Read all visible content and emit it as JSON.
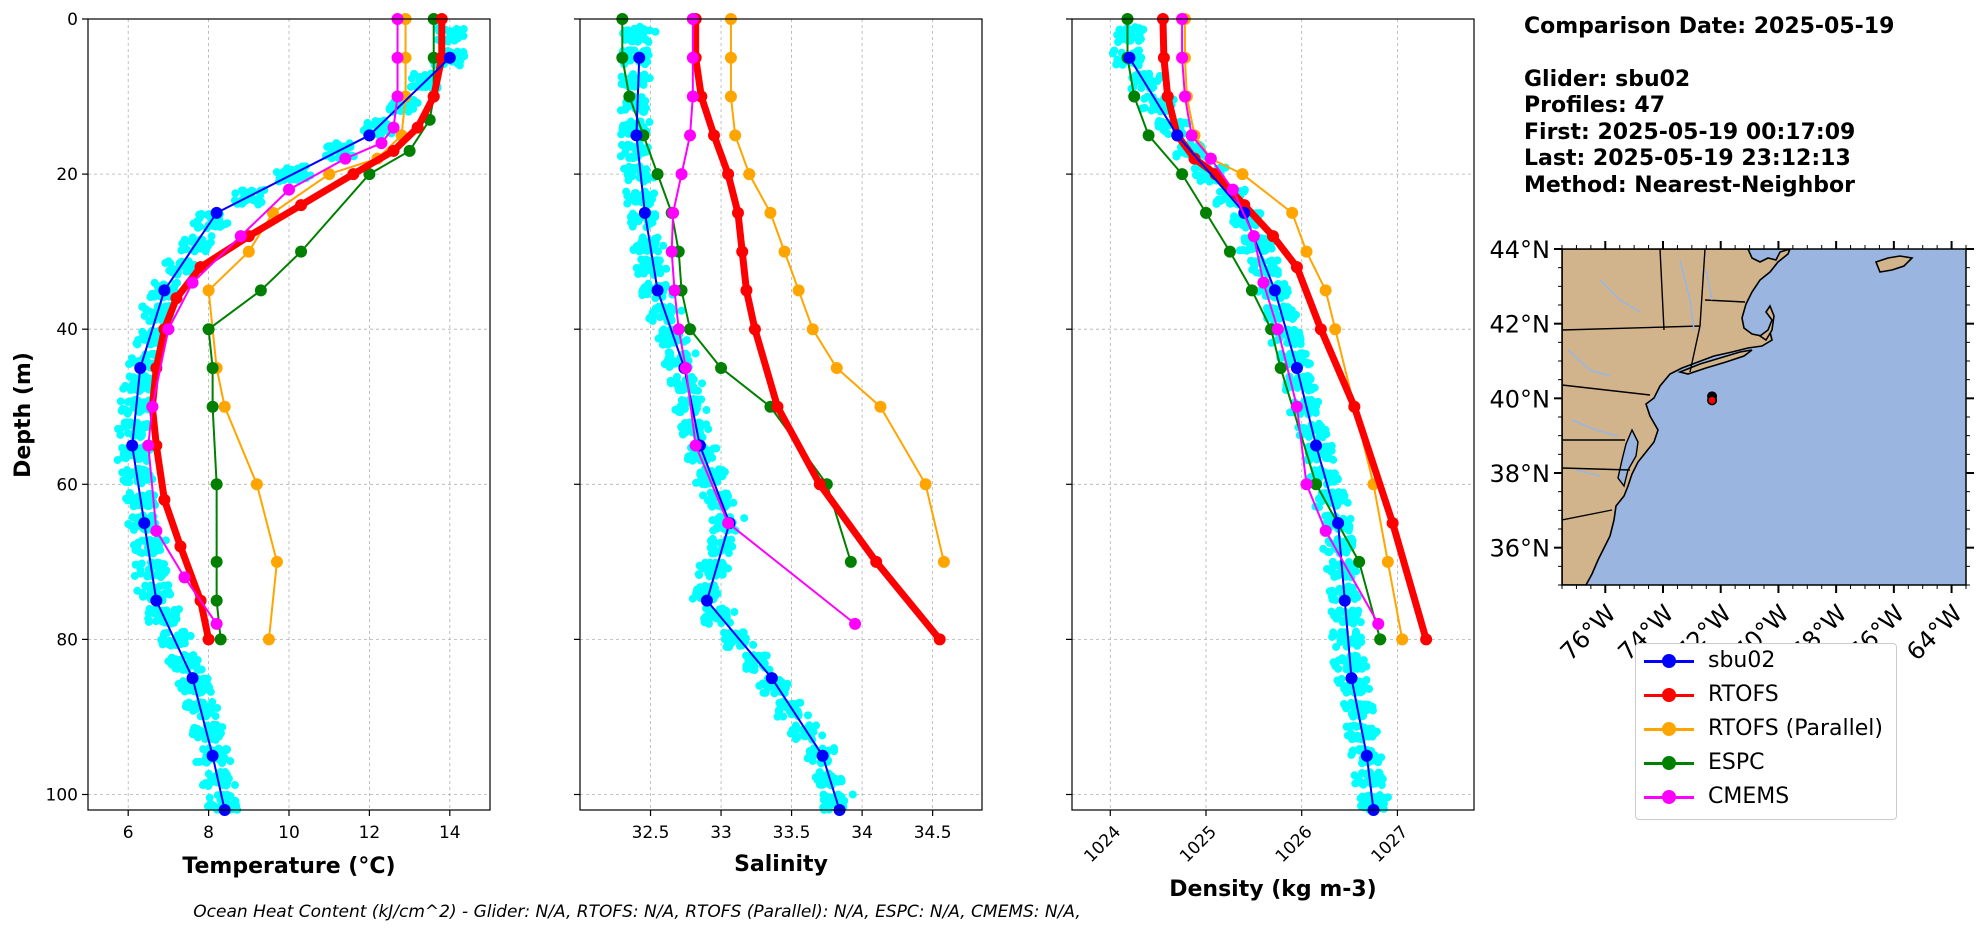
{
  "info": {
    "comparison_date": "Comparison Date: 2025-05-19",
    "glider": "Glider: sbu02",
    "profiles": "Profiles: 47",
    "first": "First: 2025-05-19 00:17:09",
    "last": "Last: 2025-05-19 23:12:13",
    "method": "Method: Nearest-Neighbor"
  },
  "footer_text": "Ocean Heat Content (kJ/cm^2) - Glider: N/A,  RTOFS: N/A,  RTOFS (Parallel): N/A,  ESPC: N/A,  CMEMS: N/A,",
  "colors": {
    "sbu02": "#0000ff",
    "RTOFS": "#ff0000",
    "RTOFS (Parallel)": "#ffa500",
    "ESPC": "#008000",
    "CMEMS": "#ff00ff",
    "glider_scatter": "#00ffff",
    "land": "#d2b48c",
    "ocean": "#9ab6e0"
  },
  "legend": [
    {
      "label": "sbu02",
      "color": "#0000ff"
    },
    {
      "label": "RTOFS",
      "color": "#ff0000"
    },
    {
      "label": "RTOFS (Parallel)",
      "color": "#ffa500"
    },
    {
      "label": "ESPC",
      "color": "#008000"
    },
    {
      "label": "CMEMS",
      "color": "#ff00ff"
    }
  ],
  "chart_data": [
    {
      "type": "line",
      "xlabel": "Temperature (°C)",
      "ylabel": "Depth (m)",
      "xlim": [
        5,
        15
      ],
      "ylim": [
        102,
        0
      ],
      "xticks": [
        6,
        8,
        10,
        12,
        14
      ],
      "yticks": [
        0,
        20,
        40,
        60,
        80,
        100
      ],
      "grid": true,
      "series": [
        {
          "name": "sbu02",
          "x": [
            14.0,
            12.0,
            8.2,
            6.9,
            6.3,
            6.1,
            6.4,
            6.7,
            7.6,
            8.1,
            8.4
          ],
          "y": [
            5,
            15,
            25,
            35,
            45,
            55,
            65,
            75,
            85,
            95,
            102
          ]
        },
        {
          "name": "RTOFS",
          "x": [
            13.8,
            13.8,
            13.6,
            13.2,
            12.6,
            11.6,
            10.3,
            9.0,
            7.8,
            7.2,
            6.9,
            6.7,
            6.6,
            6.7,
            6.9,
            7.3,
            7.8,
            8.0
          ],
          "y": [
            0,
            5,
            10,
            14,
            17,
            20,
            24,
            28,
            32,
            36,
            40,
            45,
            50,
            55,
            62,
            68,
            75,
            80
          ]
        },
        {
          "name": "RTOFS (Parallel)",
          "x": [
            12.9,
            12.9,
            12.9,
            12.8,
            12.2,
            11.0,
            9.6,
            9.0,
            8.0,
            8.2,
            8.4,
            9.2,
            9.7,
            9.5
          ],
          "y": [
            0,
            5,
            10,
            15,
            18,
            20,
            25,
            30,
            35,
            45,
            50,
            60,
            70,
            80
          ]
        },
        {
          "name": "ESPC",
          "x": [
            13.6,
            13.6,
            13.6,
            13.5,
            13.0,
            12.0,
            10.3,
            9.3,
            8.0,
            8.1,
            8.1,
            8.2,
            8.2,
            8.2,
            8.3
          ],
          "y": [
            0,
            5,
            10,
            13,
            17,
            20,
            30,
            35,
            40,
            45,
            50,
            60,
            70,
            75,
            80
          ]
        },
        {
          "name": "CMEMS",
          "x": [
            12.7,
            12.7,
            12.7,
            12.6,
            12.3,
            11.4,
            10.0,
            8.8,
            7.6,
            7.0,
            6.6,
            6.5,
            6.7,
            7.4,
            8.2
          ],
          "y": [
            0,
            5,
            10,
            14,
            16,
            18,
            22,
            28,
            34,
            40,
            50,
            55,
            66,
            72,
            78
          ]
        }
      ]
    },
    {
      "type": "line",
      "xlabel": "Salinity",
      "ylabel": "",
      "xlim": [
        32.0,
        34.85
      ],
      "ylim": [
        102,
        0
      ],
      "xticks": [
        32.5,
        33.0,
        33.5,
        34.0,
        34.5
      ],
      "yticks": [
        0,
        20,
        40,
        60,
        80,
        100
      ],
      "grid": true,
      "series": [
        {
          "name": "sbu02",
          "x": [
            32.42,
            32.4,
            32.46,
            32.55,
            32.74,
            32.85,
            33.06,
            32.9,
            33.36,
            33.72,
            33.84
          ],
          "y": [
            5,
            15,
            25,
            35,
            45,
            55,
            65,
            75,
            85,
            95,
            102
          ]
        },
        {
          "name": "RTOFS",
          "x": [
            32.82,
            32.82,
            32.86,
            32.95,
            33.05,
            33.12,
            33.15,
            33.18,
            33.24,
            33.4,
            33.7,
            34.1,
            34.55
          ],
          "y": [
            0,
            5,
            10,
            15,
            20,
            25,
            30,
            35,
            40,
            50,
            60,
            70,
            80
          ]
        },
        {
          "name": "RTOFS (Parallel)",
          "x": [
            33.07,
            33.07,
            33.07,
            33.1,
            33.2,
            33.35,
            33.45,
            33.55,
            33.65,
            33.82,
            34.13,
            34.45,
            34.58
          ],
          "y": [
            0,
            5,
            10,
            15,
            20,
            25,
            30,
            35,
            40,
            45,
            50,
            60,
            70
          ]
        },
        {
          "name": "ESPC",
          "x": [
            32.3,
            32.3,
            32.35,
            32.45,
            32.55,
            32.65,
            32.7,
            32.72,
            32.78,
            33.0,
            33.35,
            33.75,
            33.92
          ],
          "y": [
            0,
            5,
            10,
            15,
            20,
            25,
            30,
            35,
            40,
            45,
            50,
            60,
            70
          ]
        },
        {
          "name": "CMEMS",
          "x": [
            32.8,
            32.8,
            32.8,
            32.78,
            32.72,
            32.66,
            32.65,
            32.67,
            32.7,
            32.75,
            32.82,
            33.05,
            33.95
          ],
          "y": [
            0,
            5,
            10,
            15,
            20,
            25,
            30,
            35,
            40,
            45,
            55,
            65,
            78
          ]
        }
      ]
    },
    {
      "type": "line",
      "xlabel": "Density (kg m-3)",
      "ylabel": "",
      "xlim": [
        1023.6,
        1027.8
      ],
      "ylim": [
        102,
        0
      ],
      "xticks": [
        1024,
        1025,
        1026,
        1027
      ],
      "yticks": [
        0,
        20,
        40,
        60,
        80,
        100
      ],
      "grid": true,
      "series": [
        {
          "name": "sbu02",
          "x": [
            1024.2,
            1024.7,
            1025.4,
            1025.72,
            1025.95,
            1026.15,
            1026.38,
            1026.45,
            1026.52,
            1026.68,
            1026.75
          ],
          "y": [
            5,
            15,
            25,
            35,
            45,
            55,
            65,
            75,
            85,
            95,
            102
          ]
        },
        {
          "name": "RTOFS",
          "x": [
            1024.55,
            1024.56,
            1024.6,
            1024.7,
            1024.88,
            1025.1,
            1025.4,
            1025.7,
            1025.95,
            1026.2,
            1026.55,
            1026.95,
            1027.3
          ],
          "y": [
            0,
            5,
            10,
            15,
            18,
            20,
            24,
            28,
            32,
            40,
            50,
            65,
            80
          ]
        },
        {
          "name": "RTOFS (Parallel)",
          "x": [
            1024.78,
            1024.78,
            1024.8,
            1024.88,
            1025.05,
            1025.38,
            1025.9,
            1026.05,
            1026.25,
            1026.35,
            1026.55,
            1026.75,
            1026.9,
            1027.05
          ],
          "y": [
            0,
            5,
            10,
            15,
            18,
            20,
            25,
            30,
            35,
            40,
            50,
            60,
            70,
            80
          ]
        },
        {
          "name": "ESPC",
          "x": [
            1024.18,
            1024.18,
            1024.25,
            1024.4,
            1024.75,
            1025.0,
            1025.25,
            1025.48,
            1025.68,
            1025.78,
            1026.15,
            1026.6,
            1026.82
          ],
          "y": [
            0,
            5,
            10,
            15,
            20,
            25,
            30,
            35,
            40,
            45,
            60,
            70,
            80
          ]
        },
        {
          "name": "CMEMS",
          "x": [
            1024.75,
            1024.75,
            1024.78,
            1024.85,
            1025.05,
            1025.28,
            1025.5,
            1025.6,
            1025.75,
            1025.95,
            1026.05,
            1026.25,
            1026.8
          ],
          "y": [
            0,
            5,
            10,
            15,
            18,
            22,
            28,
            34,
            40,
            50,
            60,
            66,
            78
          ]
        }
      ]
    },
    {
      "type": "map",
      "lon_range": [
        -77.5,
        -63.5
      ],
      "lat_range": [
        35,
        44
      ],
      "xticks": [
        "76°W",
        "74°W",
        "72°W",
        "70°W",
        "68°W",
        "66°W",
        "64°W"
      ],
      "yticks": [
        "44°N",
        "42°N",
        "40°N",
        "38°N",
        "36°N"
      ],
      "glider_location": {
        "lon": -72.3,
        "lat": 40.0
      }
    }
  ]
}
